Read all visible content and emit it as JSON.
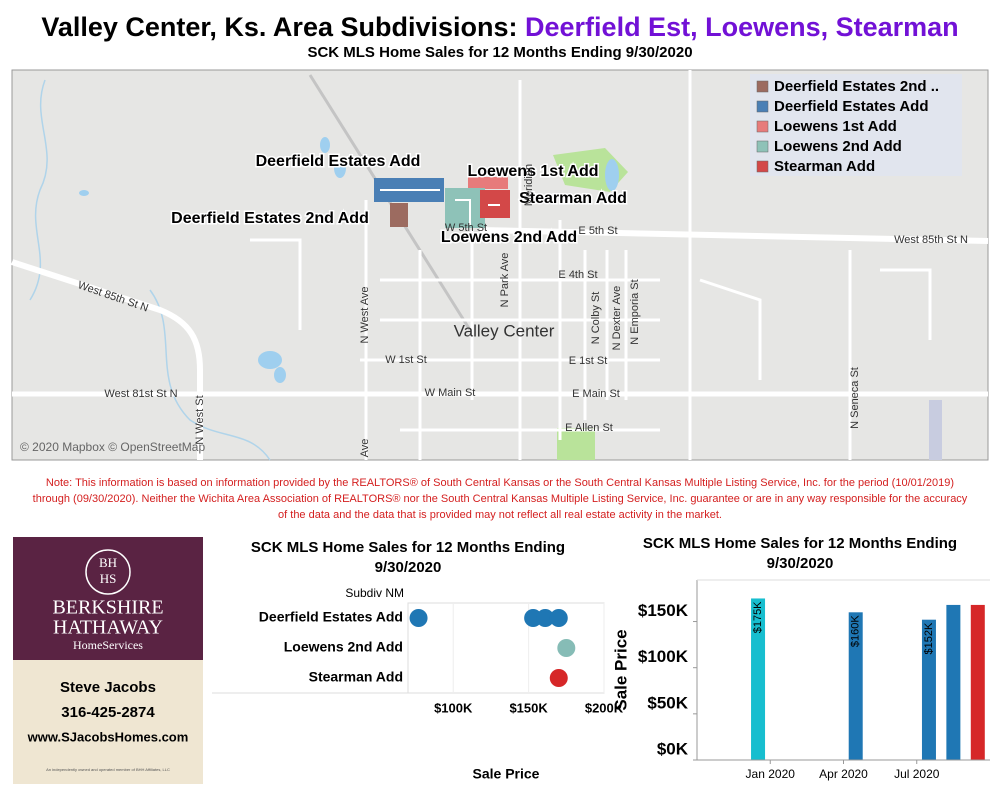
{
  "header": {
    "title": "Valley Center, Ks. Area Subdivisions:",
    "title_highlight": "Deerfield Est, Loewens, Stearman",
    "subtitle": "SCK MLS Home Sales for 12 Months Ending 9/30/2020"
  },
  "map": {
    "legend": [
      {
        "name": "Deerfield Estates 2nd ..",
        "color": "#9c6b60"
      },
      {
        "name": "Deerfield Estates Add",
        "color": "#4a7fb5"
      },
      {
        "name": "Loewens 1st Add",
        "color": "#e77b7b"
      },
      {
        "name": "Loewens 2nd Add",
        "color": "#8ec2b8"
      },
      {
        "name": "Stearman Add",
        "color": "#d34848"
      }
    ],
    "labels": [
      "Deerfield Estates Add",
      "Loewens 1st Add",
      "Stearman Add",
      "Deerfield Estates 2nd Add",
      "Loewens 2nd Add",
      "Valley Center",
      "West 85th St N",
      "West 85th St N",
      "E 5th St",
      "W 5th St",
      "E 4th St",
      "W 1st St",
      "E 1st St",
      "West 81st St N",
      "W Main St",
      "E Main St",
      "E Allen St",
      "N West Ave",
      "N West St",
      "N Park Ave",
      "N Colby St",
      "N Dexter Ave",
      "N Emporia St",
      "N Seneca St",
      "Meridian",
      "Ave"
    ],
    "attribution": "© 2020 Mapbox © OpenStreetMap"
  },
  "note": "Note: This information is based on information provided by the REALTORS® of South Central Kansas or the South Central Kansas Multiple Listing Service, Inc. for the period (10/01/2019) through (09/30/2020). Neither the Wichita Area Association of REALTORS® nor the South Central Kansas Multiple Listing Service, Inc. guarantee or are in any way responsible for the accuracy of the data and the data that is provided may not reflect all real estate activity in the market.",
  "agent": {
    "logo_top": "BH",
    "logo_bottom": "HS",
    "brand_1": "BERKSHIRE",
    "brand_2": "HATHAWAY",
    "brand_3": "HomeServices",
    "name": "Steve Jacobs",
    "phone": "316-425-2874",
    "website": "www.SJacobsHomes.com",
    "fine_print": "An independently owned and operated member of BHH Affiliates, LLC"
  },
  "chart_data": [
    {
      "type": "scatter",
      "title": "SCK MLS Home Sales for 12 Months Ending 9/30/2020",
      "row_header": "Subdiv NM",
      "x_label": "Sale Price",
      "series": [
        {
          "name": "Deerfield Estates Add",
          "color": "#1f77b4",
          "values": [
            77000,
            153000,
            161000,
            170000
          ]
        },
        {
          "name": "Loewens 2nd Add",
          "color": "#86bcb6",
          "values": [
            175000
          ]
        },
        {
          "name": "Stearman Add",
          "color": "#d62728",
          "values": [
            170000
          ]
        }
      ],
      "xlim": [
        70000,
        200000
      ],
      "xticks": [
        {
          "value": 100000,
          "label": "$100K"
        },
        {
          "value": 150000,
          "label": "$150K"
        },
        {
          "value": 200000,
          "label": "$200K"
        }
      ]
    },
    {
      "type": "bar",
      "title": "SCK MLS Home Sales for 12 Months Ending 9/30/2020",
      "y_label": "Sale Price",
      "x": [
        "Dec 2019",
        "Apr 2020",
        "Jul 2020",
        "Aug 2020",
        "Sep 2020"
      ],
      "values": [
        175000,
        160000,
        152000,
        168000,
        168000
      ],
      "value_labels": [
        "$175K",
        "$160K",
        "$152K",
        null,
        null
      ],
      "colors": [
        "#17becf",
        "#1f77b4",
        "#1f77b4",
        "#1f77b4",
        "#d62728"
      ],
      "xlim": [
        "Oct 2019",
        "Oct 2020"
      ],
      "xticks": [
        "Jan 2020",
        "Apr 2020",
        "Jul 2020"
      ],
      "ylim": [
        0,
        195000
      ],
      "yticks": [
        {
          "value": 0,
          "label": "$0K"
        },
        {
          "value": 50000,
          "label": "$50K"
        },
        {
          "value": 100000,
          "label": "$100K"
        },
        {
          "value": 150000,
          "label": "$150K"
        }
      ]
    }
  ]
}
